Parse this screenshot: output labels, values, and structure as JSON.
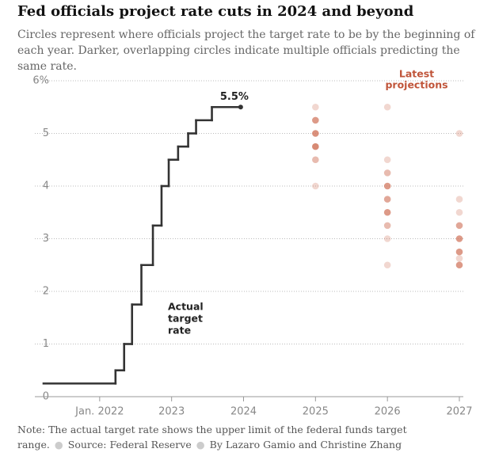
{
  "chart_data": {
    "type": "step",
    "title": "Fed officials project rate cuts in 2024 and beyond",
    "subtitle": "Circles represent where officials project the target rate to be by the beginning of each year. Darker, overlapping circles indicate multiple officials predicting the same rate.",
    "x": [
      2021.22,
      2022.22,
      2022.34,
      2022.45,
      2022.58,
      2022.74,
      2022.86,
      2022.96,
      2023.09,
      2023.23,
      2023.34,
      2023.56,
      2023.96
    ],
    "values": [
      0.25,
      0.5,
      1,
      1.75,
      2.5,
      3.25,
      4,
      4.5,
      4.75,
      5,
      5.25,
      5.5,
      5.5
    ],
    "value_labels": [
      null,
      null,
      null,
      null,
      null,
      null,
      null,
      null,
      null,
      null,
      null,
      null,
      "5.5%"
    ],
    "color": "#333333",
    "annotation": [
      "Actual",
      "target",
      "rate"
    ],
    "projections": {
      "title": [
        "Latest",
        "projections"
      ],
      "color": "#d27a62",
      "x": [
        2025,
        2025,
        2025,
        2025,
        2025,
        2025,
        2026,
        2026,
        2026,
        2026,
        2026,
        2026,
        2026,
        2026,
        2026,
        2027,
        2027,
        2027,
        2027,
        2027,
        2027,
        2027,
        2027
      ],
      "values": [
        5.5,
        5.25,
        5,
        4.75,
        4.5,
        4,
        5.5,
        4.5,
        4.25,
        4,
        3.75,
        3.5,
        3.25,
        3,
        2.5,
        5,
        3.75,
        3.5,
        3.25,
        3,
        2.75,
        2.625,
        2.5
      ],
      "counts": [
        1,
        4,
        5,
        6,
        2,
        1,
        1,
        1,
        2,
        4,
        3,
        4,
        2,
        1,
        1,
        1,
        1,
        1,
        3,
        4,
        4,
        1,
        4
      ]
    },
    "xlim": [
      2021.22,
      2027
    ],
    "xticks": [
      {
        "value": 2022,
        "label": "Jan. 2022"
      },
      2023,
      2024,
      2025,
      2026,
      2027
    ],
    "ylim": [
      0,
      6
    ],
    "yticks": [
      0,
      1,
      2,
      3,
      4,
      5,
      {
        "value": 6,
        "label": "6%"
      }
    ],
    "grid": true,
    "note": "Note: The actual target rate shows the upper limit of the federal funds target range.",
    "source": "Source: Federal Reserve",
    "byline": "By Lazaro Gamio and Christine Zhang"
  }
}
